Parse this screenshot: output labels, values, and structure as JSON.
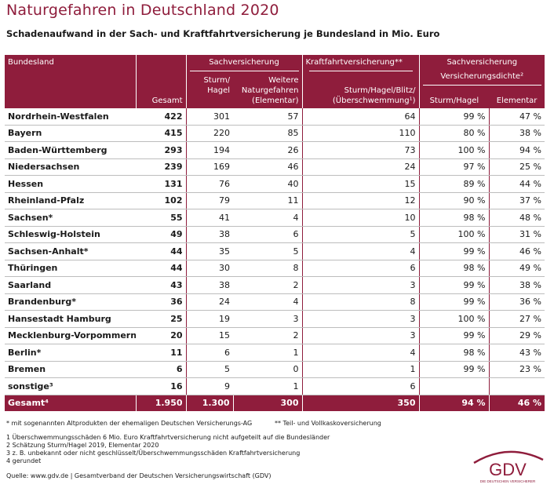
{
  "title": "Naturgefahren in Deutschland 2020",
  "subtitle": "Schadenaufwand in der Sach- und Kraftfahrtversicherung je Bundesland in Mio. Euro",
  "header": {
    "bundesland": "Bundesland",
    "gesamt": "Gesamt",
    "sach": "Sachversicherung",
    "sturm_hagel_1": "Sturm/",
    "sturm_hagel_2": "Hagel",
    "weitere_1": "Weitere",
    "weitere_2": "Naturgefahren",
    "weitere_3": "(Elementar)",
    "kraft": "Kraftfahrtversicherung**",
    "kraft_sub_1": "Sturm/Hagel/Blitz/",
    "kraft_sub_2": "(Überschwemmung¹)",
    "dichte_1": "Sachversicherung",
    "dichte_2": "Versicherungsdichte²",
    "dichte_sh": "Sturm/Hagel",
    "dichte_el": "Elementar"
  },
  "rows": [
    {
      "land": "Nordrhein-Westfalen",
      "gesamt": "422",
      "sh": "301",
      "el": "57",
      "kfz": "64",
      "d_sh": "99 %",
      "d_el": "47 %"
    },
    {
      "land": "Bayern",
      "gesamt": "415",
      "sh": "220",
      "el": "85",
      "kfz": "110",
      "d_sh": "80 %",
      "d_el": "38 %"
    },
    {
      "land": "Baden-Württemberg",
      "gesamt": "293",
      "sh": "194",
      "el": "26",
      "kfz": "73",
      "d_sh": "100 %",
      "d_el": "94 %"
    },
    {
      "land": "Niedersachsen",
      "gesamt": "239",
      "sh": "169",
      "el": "46",
      "kfz": "24",
      "d_sh": "97 %",
      "d_el": "25 %"
    },
    {
      "land": "Hessen",
      "gesamt": "131",
      "sh": "76",
      "el": "40",
      "kfz": "15",
      "d_sh": "89 %",
      "d_el": "44 %"
    },
    {
      "land": "Rheinland-Pfalz",
      "gesamt": "102",
      "sh": "79",
      "el": "11",
      "kfz": "12",
      "d_sh": "90 %",
      "d_el": "37 %"
    },
    {
      "land": "Sachsen*",
      "gesamt": "55",
      "sh": "41",
      "el": "4",
      "kfz": "10",
      "d_sh": "98 %",
      "d_el": "48 %"
    },
    {
      "land": "Schleswig-Holstein",
      "gesamt": "49",
      "sh": "38",
      "el": "6",
      "kfz": "5",
      "d_sh": "100 %",
      "d_el": "31 %"
    },
    {
      "land": "Sachsen-Anhalt*",
      "gesamt": "44",
      "sh": "35",
      "el": "5",
      "kfz": "4",
      "d_sh": "99 %",
      "d_el": "46 %"
    },
    {
      "land": "Thüringen",
      "gesamt": "44",
      "sh": "30",
      "el": "8",
      "kfz": "6",
      "d_sh": "98 %",
      "d_el": "49 %"
    },
    {
      "land": "Saarland",
      "gesamt": "43",
      "sh": "38",
      "el": "2",
      "kfz": "3",
      "d_sh": "99 %",
      "d_el": "38 %"
    },
    {
      "land": "Brandenburg*",
      "gesamt": "36",
      "sh": "24",
      "el": "4",
      "kfz": "8",
      "d_sh": "99 %",
      "d_el": "36 %"
    },
    {
      "land": "Hansestadt Hamburg",
      "gesamt": "25",
      "sh": "19",
      "el": "3",
      "kfz": "3",
      "d_sh": "100 %",
      "d_el": "27 %"
    },
    {
      "land": "Mecklenburg-Vorpommern*",
      "gesamt": "20",
      "sh": "15",
      "el": "2",
      "kfz": "3",
      "d_sh": "99 %",
      "d_el": "29 %"
    },
    {
      "land": "Berlin*",
      "gesamt": "11",
      "sh": "6",
      "el": "1",
      "kfz": "4",
      "d_sh": "98 %",
      "d_el": "43 %"
    },
    {
      "land": "Bremen",
      "gesamt": "6",
      "sh": "5",
      "el": "0",
      "kfz": "1",
      "d_sh": "99 %",
      "d_el": "23 %"
    },
    {
      "land": "sonstige³",
      "gesamt": "16",
      "sh": "9",
      "el": "1",
      "kfz": "6",
      "d_sh": "",
      "d_el": ""
    }
  ],
  "total": {
    "land": "Gesamt⁴",
    "gesamt": "1.950",
    "sh": "1.300",
    "el": "300",
    "kfz": "350",
    "d_sh": "94 %",
    "d_el": "46 %"
  },
  "footnotes": {
    "star": "* mit sogenannten Altprodukten der ehemaligen Deutschen Versicherungs-AG",
    "double_star": "** Teil- und Vollkaskoversicherung",
    "n1": "1  Überschwemmungsschäden 6 Mio. Euro Kraftfahrtversicherung nicht aufgeteilt auf die Bundesländer",
    "n2": "2  Schätzung Sturm/Hagel 2019, Elementar 2020",
    "n3": "3  z. B. unbekannt oder nicht geschlüsselt/Überschwemmungsschäden Kraftfahrtversicherung",
    "n4": "4  gerundet"
  },
  "source": "Quelle: www.gdv.de | Gesamtverband der Deutschen Versicherungswirtschaft (GDV)",
  "logo": {
    "text": "GDV",
    "tagline": "DIE DEUTSCHEN VERSICHERER"
  },
  "colors": {
    "accent": "#8f1d3c"
  }
}
